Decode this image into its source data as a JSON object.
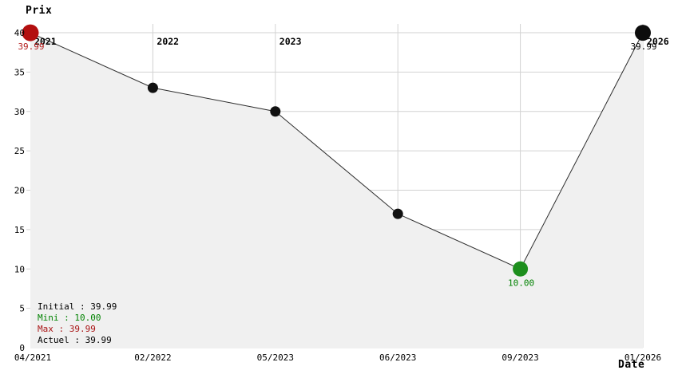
{
  "chart_data": {
    "type": "line",
    "ylabel": "Prix",
    "xlabel": "Date",
    "ylim": [
      0,
      40
    ],
    "y_ticks": [
      0,
      5,
      10,
      15,
      20,
      25,
      30,
      35,
      40
    ],
    "grid": true,
    "x_tick_labels": [
      "04/2021",
      "02/2022",
      "05/2023",
      "06/2023",
      "09/2023",
      "01/2026"
    ],
    "values": [
      39.99,
      33,
      30,
      17,
      10,
      39.99
    ],
    "year_labels": [
      {
        "text": "2021",
        "point_index": 0
      },
      {
        "text": "2022",
        "point_index": 1
      },
      {
        "text": "2023",
        "point_index": 2
      },
      {
        "text": "2026",
        "point_index": 5
      }
    ],
    "point_annotations": [
      {
        "point_index": 0,
        "text": "39.99",
        "color": "#b31a1a"
      },
      {
        "point_index": 4,
        "text": "10.00",
        "color": "#008200"
      },
      {
        "point_index": 5,
        "text": "39.99",
        "color": "#000000"
      }
    ],
    "highlight_points": [
      {
        "point_index": 0,
        "color": "#b30f0f",
        "radius": 10.5,
        "role": "initial-price-point"
      },
      {
        "point_index": 4,
        "color": "#1d8e1d",
        "radius": 9.5,
        "role": "min-price-point"
      },
      {
        "point_index": 5,
        "color": "#0d0d0d",
        "radius": 10,
        "role": "current-price-point"
      }
    ],
    "default_point": {
      "color": "#111111",
      "radius": 6.5
    },
    "colors": {
      "grid": "#d2d2d2",
      "area_fill": "#f0f0f0",
      "line": "#2e2e2e",
      "tick_text": "#000000",
      "year_text": "#000000",
      "background": "#ffffff"
    }
  },
  "legend": {
    "items": [
      {
        "name": "initial",
        "label": "Initial : 39.99",
        "color": "#000000"
      },
      {
        "name": "mini",
        "label": "Mini : 10.00",
        "color": "#008200"
      },
      {
        "name": "max",
        "label": "Max : 39.99",
        "color": "#a81414"
      },
      {
        "name": "actuel",
        "label": "Actuel : 39.99",
        "color": "#000000"
      }
    ]
  }
}
